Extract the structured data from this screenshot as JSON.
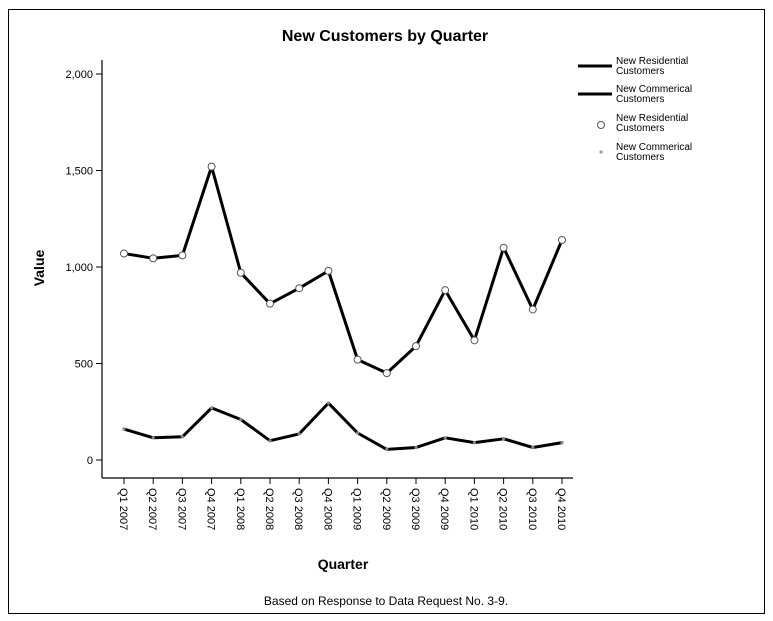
{
  "chart_data": {
    "type": "line",
    "title": "New Customers by Quarter",
    "xlabel": "Quarter",
    "ylabel": "Value",
    "ylim": [
      0,
      2000
    ],
    "yticks": [
      "0",
      "500",
      "1,000",
      "1,500",
      "2,000"
    ],
    "ytick_values": [
      0,
      500,
      1000,
      1500,
      2000
    ],
    "grid": false,
    "legend_position": "right",
    "categories": [
      "Q1 2007",
      "Q2 2007",
      "Q3 2007",
      "Q4 2007",
      "Q1 2008",
      "Q2 2008",
      "Q3 2008",
      "Q4 2008",
      "Q1 2009",
      "Q2 2009",
      "Q3 2009",
      "Q4 2009",
      "Q1 2010",
      "Q2 2010",
      "Q3 2010",
      "Q4 2010"
    ],
    "series": [
      {
        "name": "New Residential Customers",
        "style": "line",
        "color": "#000000",
        "values": [
          1070,
          1045,
          1060,
          1520,
          970,
          810,
          890,
          980,
          520,
          450,
          590,
          880,
          620,
          1100,
          780,
          1140
        ]
      },
      {
        "name": "New Commerical Customers",
        "style": "line",
        "color": "#000000",
        "values": [
          160,
          115,
          120,
          270,
          210,
          100,
          135,
          295,
          140,
          55,
          65,
          115,
          90,
          110,
          65,
          90
        ]
      }
    ],
    "markers": [
      {
        "name": "New Residential Customers",
        "marker": "open-circle",
        "values": [
          1070,
          1045,
          1060,
          1520,
          970,
          810,
          890,
          980,
          520,
          450,
          590,
          880,
          620,
          1100,
          780,
          1140
        ]
      },
      {
        "name": "New Commerical Customers",
        "marker": "dot",
        "values": [
          160,
          115,
          120,
          270,
          210,
          100,
          135,
          295,
          140,
          55,
          65,
          115,
          90,
          110,
          65,
          90
        ]
      }
    ],
    "legend": [
      {
        "label_lines": [
          "New Residential",
          "Customers"
        ],
        "symbol": "line"
      },
      {
        "label_lines": [
          "New Commerical",
          "Customers"
        ],
        "symbol": "line"
      },
      {
        "label_lines": [
          "New Residential",
          "Customers"
        ],
        "symbol": "open-circle"
      },
      {
        "label_lines": [
          "New Commerical",
          "Customers"
        ],
        "symbol": "dot"
      }
    ],
    "footnote": "Based on Response to Data Request No. 3-9."
  }
}
